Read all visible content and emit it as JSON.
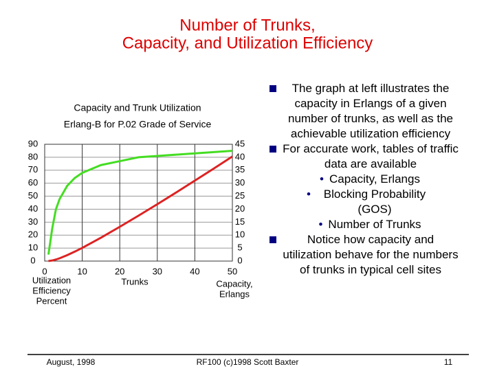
{
  "slide": {
    "title": [
      "Number of Trunks,",
      "Capacity, and Utilization Efficiency"
    ],
    "bullets": [
      {
        "text": "The graph at left illustrates the capacity in Erlangs of a given number of trunks, as well as the achievable utilization efficiency",
        "sub": []
      },
      {
        "text": "For accurate work, tables of traffic data are available",
        "sub": [
          "Capacity, Erlangs",
          "Blocking Probability (GOS)",
          "Number of Trunks"
        ]
      },
      {
        "text": "Notice how capacity and utilization behave for the numbers of trunks in typical cell sites",
        "sub": []
      }
    ],
    "footer": {
      "left": "August, 1998",
      "center": "RF100 (c)1998 Scott Baxter",
      "right": "11"
    }
  },
  "chart_data": {
    "type": "line",
    "title": [
      "Capacity and Trunk Utilization",
      "Erlang-B for P.02 Grade of Service"
    ],
    "xlabel": "Trunks",
    "ylabel": [
      "Utilization",
      "Efficiency",
      "Percent"
    ],
    "y2label": [
      "Capacity,",
      "Erlangs"
    ],
    "x": [
      1,
      2,
      3,
      4,
      6,
      8,
      10,
      15,
      20,
      25,
      30,
      35,
      40,
      45,
      50
    ],
    "series": [
      {
        "name": "Utilization Efficiency",
        "color": "#44dd22",
        "axis": "y",
        "values": [
          5,
          25,
          40,
          48,
          58,
          64,
          68,
          74,
          77,
          80,
          81,
          82,
          83,
          84,
          85
        ]
      },
      {
        "name": "Capacity",
        "color": "#dd2222",
        "axis": "y2",
        "values": [
          0.02,
          0.22,
          0.6,
          1.09,
          2.28,
          3.63,
          5.08,
          9.01,
          13.2,
          17.5,
          21.9,
          26.4,
          31.0,
          35.6,
          40.3
        ]
      }
    ],
    "xlim": [
      0,
      50
    ],
    "xticks": [
      0,
      10,
      20,
      30,
      40,
      50
    ],
    "ylim": [
      0,
      90
    ],
    "yticks": [
      0,
      10,
      20,
      30,
      40,
      50,
      60,
      70,
      80,
      90
    ],
    "y2lim": [
      0,
      45
    ],
    "y2ticks": [
      0,
      5,
      10,
      15,
      20,
      25,
      30,
      35,
      40,
      45
    ],
    "grid": true
  }
}
